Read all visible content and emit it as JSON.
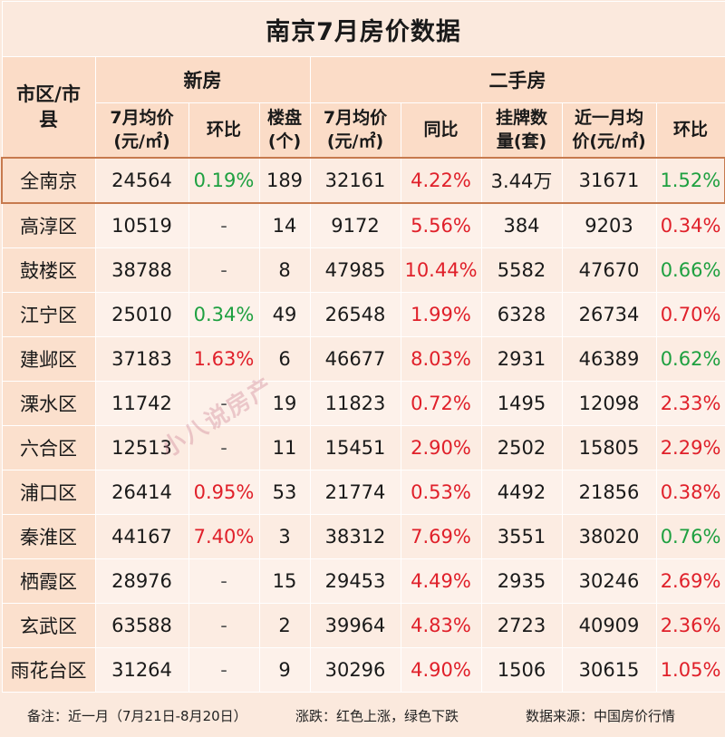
{
  "title": "南京7月房价数据",
  "headers": {
    "district": "市区/市县",
    "new_group": "新房",
    "resale_group": "二手房",
    "new_price": "7月均价(元/㎡)",
    "new_mom": "环比",
    "new_projects": "楼盘(个)",
    "resale_price": "7月均价(元/㎡)",
    "resale_yoy": "同比",
    "resale_listings": "挂牌数量(套)",
    "resale_recent": "近一月均价(元/㎡)",
    "resale_mom": "环比"
  },
  "rows": [
    {
      "district": "全南京",
      "new_price": "24564",
      "new_mom": "0.19%",
      "new_mom_color": "green",
      "projects": "189",
      "resale_price": "32161",
      "yoy": "4.22%",
      "listings": "3.44万",
      "recent": "31671",
      "mom": "1.52%",
      "mom_color": "green"
    },
    {
      "district": "高淳区",
      "new_price": "10519",
      "new_mom": "-",
      "new_mom_color": "dash",
      "projects": "14",
      "resale_price": "9172",
      "yoy": "5.56%",
      "listings": "384",
      "recent": "9203",
      "mom": "0.34%",
      "mom_color": "red"
    },
    {
      "district": "鼓楼区",
      "new_price": "38788",
      "new_mom": "-",
      "new_mom_color": "dash",
      "projects": "8",
      "resale_price": "47985",
      "yoy": "10.44%",
      "listings": "5582",
      "recent": "47670",
      "mom": "0.66%",
      "mom_color": "green"
    },
    {
      "district": "江宁区",
      "new_price": "25010",
      "new_mom": "0.34%",
      "new_mom_color": "green",
      "projects": "49",
      "resale_price": "26548",
      "yoy": "1.99%",
      "listings": "6328",
      "recent": "26734",
      "mom": "0.70%",
      "mom_color": "red"
    },
    {
      "district": "建邺区",
      "new_price": "37183",
      "new_mom": "1.63%",
      "new_mom_color": "red",
      "projects": "6",
      "resale_price": "46677",
      "yoy": "8.03%",
      "listings": "2931",
      "recent": "46389",
      "mom": "0.62%",
      "mom_color": "green"
    },
    {
      "district": "溧水区",
      "new_price": "11742",
      "new_mom": "-",
      "new_mom_color": "dash",
      "projects": "19",
      "resale_price": "11823",
      "yoy": "0.72%",
      "listings": "1495",
      "recent": "12098",
      "mom": "2.33%",
      "mom_color": "red"
    },
    {
      "district": "六合区",
      "new_price": "12513",
      "new_mom": "-",
      "new_mom_color": "dash",
      "projects": "11",
      "resale_price": "15451",
      "yoy": "2.90%",
      "listings": "2502",
      "recent": "15805",
      "mom": "2.29%",
      "mom_color": "red"
    },
    {
      "district": "浦口区",
      "new_price": "26414",
      "new_mom": "0.95%",
      "new_mom_color": "red",
      "projects": "53",
      "resale_price": "21774",
      "yoy": "0.53%",
      "listings": "4492",
      "recent": "21856",
      "mom": "0.38%",
      "mom_color": "red"
    },
    {
      "district": "秦淮区",
      "new_price": "44167",
      "new_mom": "7.40%",
      "new_mom_color": "red",
      "projects": "3",
      "resale_price": "38312",
      "yoy": "7.69%",
      "listings": "3551",
      "recent": "38020",
      "mom": "0.76%",
      "mom_color": "green"
    },
    {
      "district": "栖霞区",
      "new_price": "28976",
      "new_mom": "-",
      "new_mom_color": "dash",
      "projects": "15",
      "resale_price": "29453",
      "yoy": "4.49%",
      "listings": "2935",
      "recent": "30246",
      "mom": "2.69%",
      "mom_color": "red"
    },
    {
      "district": "玄武区",
      "new_price": "63588",
      "new_mom": "-",
      "new_mom_color": "dash",
      "projects": "2",
      "resale_price": "39964",
      "yoy": "4.83%",
      "listings": "2723",
      "recent": "40909",
      "mom": "2.36%",
      "mom_color": "red"
    },
    {
      "district": "雨花台区",
      "new_price": "31264",
      "new_mom": "-",
      "new_mom_color": "dash",
      "projects": "9",
      "resale_price": "30296",
      "yoy": "4.90%",
      "listings": "1506",
      "recent": "30615",
      "mom": "1.05%",
      "mom_color": "red"
    }
  ],
  "footer": {
    "note": "备注：近一月（7月21日-8月20日）",
    "legend": "涨跌：红色上涨，绿色下跌",
    "source": "数据来源：中国房价行情"
  },
  "watermark": "小八说房产",
  "colors": {
    "up": "#e0202a",
    "down": "#1ea040"
  }
}
